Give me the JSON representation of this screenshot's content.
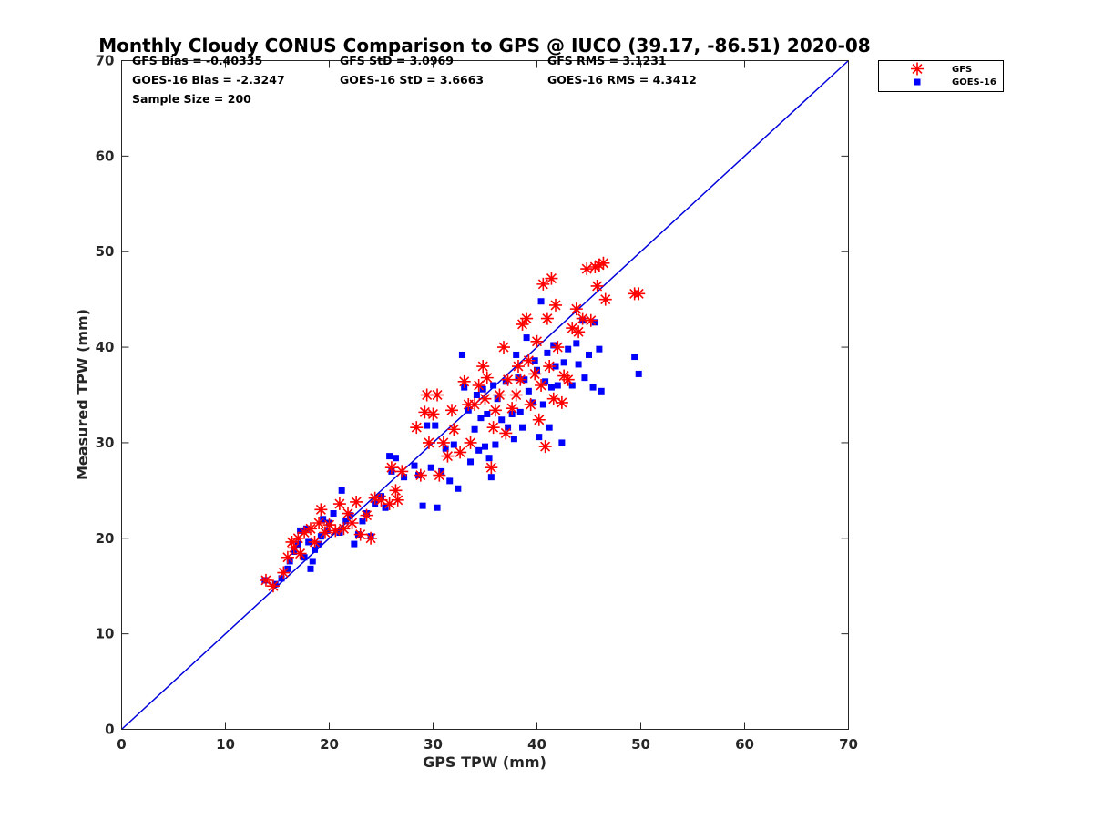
{
  "chart_data": {
    "type": "scatter",
    "title": "Monthly Cloudy CONUS Comparison to GPS @ IUCO (39.17, -86.51) 2020-08",
    "xlabel": "GPS TPW (mm)",
    "ylabel": "Measured TPW (mm)",
    "xlim": [
      0,
      70
    ],
    "ylim": [
      0,
      70
    ],
    "xticks": [
      "0",
      "10",
      "20",
      "30",
      "40",
      "50",
      "60",
      "70"
    ],
    "yticks": [
      "0",
      "10",
      "20",
      "30",
      "40",
      "50",
      "60",
      "70"
    ],
    "grid": false,
    "legend_position": "outside top-right",
    "stats": [
      [
        "GFS Bias = -0.40335",
        "GFS StD = 3.0969",
        "GFS RMS = 3.1231"
      ],
      [
        "GOES-16 Bias = -2.3247",
        "GOES-16 StD = 3.6663",
        "GOES-16 RMS = 4.3412"
      ],
      [
        "Sample Size = 200"
      ]
    ],
    "reference_line": {
      "x": [
        0,
        70
      ],
      "y": [
        0,
        70
      ],
      "color": "#0000dd"
    },
    "series": [
      {
        "name": "GFS",
        "marker": "asterisk",
        "color": "#ff0000",
        "points": [
          [
            13.9,
            15.6
          ],
          [
            14.6,
            15
          ],
          [
            15.6,
            16.4
          ],
          [
            16,
            18
          ],
          [
            16.4,
            19.6
          ],
          [
            16.6,
            19
          ],
          [
            17,
            20
          ],
          [
            17.2,
            18.4
          ],
          [
            17.6,
            20.6
          ],
          [
            18.2,
            21
          ],
          [
            18.6,
            19.6
          ],
          [
            19,
            21.6
          ],
          [
            19.2,
            23
          ],
          [
            19.6,
            20.6
          ],
          [
            20,
            21.4
          ],
          [
            20.6,
            20.8
          ],
          [
            21,
            23.6
          ],
          [
            21.4,
            21
          ],
          [
            21.8,
            22.6
          ],
          [
            22.2,
            21.6
          ],
          [
            22.6,
            23.8
          ],
          [
            23,
            20.4
          ],
          [
            23.6,
            22.4
          ],
          [
            24,
            20
          ],
          [
            24.4,
            24.2
          ],
          [
            25,
            24
          ],
          [
            25.8,
            23.6
          ],
          [
            26,
            27.4
          ],
          [
            26.4,
            25
          ],
          [
            26.6,
            24
          ],
          [
            27,
            27
          ],
          [
            28.4,
            31.6
          ],
          [
            28.8,
            26.6
          ],
          [
            29.2,
            33.2
          ],
          [
            29.4,
            35
          ],
          [
            29.6,
            30
          ],
          [
            30,
            33
          ],
          [
            30.4,
            35
          ],
          [
            30.6,
            26.6
          ],
          [
            31,
            30
          ],
          [
            31.4,
            28.6
          ],
          [
            31.8,
            33.4
          ],
          [
            32,
            31.4
          ],
          [
            32.6,
            29
          ],
          [
            33,
            36.4
          ],
          [
            33.4,
            34
          ],
          [
            33.6,
            30
          ],
          [
            34,
            34
          ],
          [
            34.4,
            36
          ],
          [
            34.8,
            38
          ],
          [
            35,
            34.6
          ],
          [
            35.2,
            36.8
          ],
          [
            35.6,
            27.4
          ],
          [
            35.8,
            31.6
          ],
          [
            36,
            33.4
          ],
          [
            36.4,
            35
          ],
          [
            36.8,
            40
          ],
          [
            37,
            31
          ],
          [
            37.2,
            36.6
          ],
          [
            37.6,
            33.6
          ],
          [
            38,
            35
          ],
          [
            38.2,
            38
          ],
          [
            38.4,
            36.6
          ],
          [
            38.6,
            42.4
          ],
          [
            39,
            43
          ],
          [
            39.2,
            38.6
          ],
          [
            39.4,
            34
          ],
          [
            39.8,
            37.2
          ],
          [
            40,
            40.6
          ],
          [
            40.2,
            32.4
          ],
          [
            40.4,
            36
          ],
          [
            40.6,
            46.6
          ],
          [
            40.8,
            29.6
          ],
          [
            41,
            43
          ],
          [
            41.2,
            38
          ],
          [
            41.4,
            47.2
          ],
          [
            41.6,
            34.6
          ],
          [
            41.8,
            44.4
          ],
          [
            42,
            40
          ],
          [
            42.4,
            34.2
          ],
          [
            42.6,
            37
          ],
          [
            43,
            36.6
          ],
          [
            43.4,
            42
          ],
          [
            43.8,
            44
          ],
          [
            44,
            41.6
          ],
          [
            44.4,
            43
          ],
          [
            44.8,
            48.2
          ],
          [
            45.2,
            42.8
          ],
          [
            45.6,
            48.4
          ],
          [
            45.8,
            46.4
          ],
          [
            46,
            48.6
          ],
          [
            46.4,
            48.8
          ],
          [
            46.6,
            45
          ],
          [
            49.4,
            45.6
          ],
          [
            49.8,
            45.6
          ]
        ]
      },
      {
        "name": "GOES-16",
        "marker": "square",
        "color": "#0000ff",
        "points": [
          [
            13.8,
            15.6
          ],
          [
            14.8,
            15.2
          ],
          [
            15.4,
            15.8
          ],
          [
            16,
            16.8
          ],
          [
            16.2,
            17.6
          ],
          [
            16.6,
            18.6
          ],
          [
            17,
            19.4
          ],
          [
            17.2,
            20.8
          ],
          [
            17.6,
            18
          ],
          [
            17.8,
            21
          ],
          [
            18,
            19.6
          ],
          [
            18.2,
            16.8
          ],
          [
            18.4,
            17.6
          ],
          [
            18.6,
            18.8
          ],
          [
            19,
            19.4
          ],
          [
            19.2,
            20.2
          ],
          [
            19.4,
            22
          ],
          [
            19.8,
            20.8
          ],
          [
            20,
            21.6
          ],
          [
            20.4,
            22.6
          ],
          [
            21,
            20.6
          ],
          [
            21.2,
            25
          ],
          [
            21.6,
            21.8
          ],
          [
            22,
            22.4
          ],
          [
            22.4,
            19.4
          ],
          [
            22.8,
            20.4
          ],
          [
            23.2,
            21.8
          ],
          [
            23.6,
            22.6
          ],
          [
            24,
            20.2
          ],
          [
            24.4,
            23.6
          ],
          [
            25,
            24.4
          ],
          [
            25.4,
            23.2
          ],
          [
            25.8,
            28.6
          ],
          [
            26,
            27
          ],
          [
            26.4,
            28.4
          ],
          [
            27.2,
            26.4
          ],
          [
            28.2,
            27.6
          ],
          [
            28.6,
            26.6
          ],
          [
            29,
            23.4
          ],
          [
            29.4,
            31.8
          ],
          [
            29.8,
            27.4
          ],
          [
            30.2,
            31.8
          ],
          [
            30.4,
            23.2
          ],
          [
            30.8,
            27
          ],
          [
            31.2,
            29.4
          ],
          [
            31.6,
            26
          ],
          [
            32,
            29.8
          ],
          [
            32.4,
            25.2
          ],
          [
            32.8,
            39.2
          ],
          [
            33,
            35.8
          ],
          [
            33.4,
            33.4
          ],
          [
            33.6,
            28
          ],
          [
            34,
            31.4
          ],
          [
            34.2,
            35
          ],
          [
            34.4,
            29.2
          ],
          [
            34.6,
            32.6
          ],
          [
            34.8,
            35.6
          ],
          [
            35,
            29.6
          ],
          [
            35.2,
            33
          ],
          [
            35.4,
            28.4
          ],
          [
            35.6,
            26.4
          ],
          [
            35.8,
            36
          ],
          [
            36,
            29.8
          ],
          [
            36.2,
            34.6
          ],
          [
            36.6,
            32.4
          ],
          [
            37,
            36.4
          ],
          [
            37.2,
            31.6
          ],
          [
            37.6,
            33
          ],
          [
            37.8,
            30.4
          ],
          [
            38,
            39.2
          ],
          [
            38.2,
            36.8
          ],
          [
            38.4,
            33.2
          ],
          [
            38.6,
            31.6
          ],
          [
            38.8,
            36.6
          ],
          [
            39,
            41
          ],
          [
            39.2,
            35.4
          ],
          [
            39.6,
            34.2
          ],
          [
            39.8,
            38.6
          ],
          [
            40,
            37.6
          ],
          [
            40.2,
            30.6
          ],
          [
            40.4,
            44.8
          ],
          [
            40.6,
            34
          ],
          [
            40.8,
            36.4
          ],
          [
            41,
            39.4
          ],
          [
            41.2,
            31.6
          ],
          [
            41.4,
            35.8
          ],
          [
            41.6,
            40.2
          ],
          [
            41.8,
            38
          ],
          [
            42,
            36
          ],
          [
            42.4,
            30
          ],
          [
            42.6,
            38.4
          ],
          [
            43,
            39.8
          ],
          [
            43.4,
            36
          ],
          [
            43.8,
            40.4
          ],
          [
            44,
            38.2
          ],
          [
            44.4,
            42.8
          ],
          [
            44.6,
            36.8
          ],
          [
            45,
            39.2
          ],
          [
            45.4,
            35.8
          ],
          [
            45.6,
            42.6
          ],
          [
            46,
            39.8
          ],
          [
            46.2,
            35.4
          ],
          [
            49.4,
            39
          ],
          [
            49.8,
            37.2
          ]
        ]
      }
    ]
  }
}
